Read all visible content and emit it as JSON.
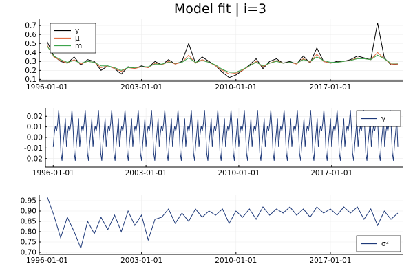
{
  "figure": {
    "title": "Model fit | i=3"
  },
  "colors": {
    "y": "#000000",
    "mu": "#e26f46",
    "m": "#3da44d",
    "gamma": "#1f3a7a",
    "sigma2": "#1f3a7a",
    "grid": "#ececec",
    "axis": "#000000"
  },
  "chart_data": [
    {
      "type": "line",
      "title": "Model fit | i=3",
      "x_axis": {
        "type": "date",
        "range": [
          "1995-06-01",
          "2022-06-01"
        ],
        "ticks": [
          "1996-01-01",
          "2003-01-01",
          "2010-01-01",
          "2017-01-01"
        ]
      },
      "y_axis": {
        "range": [
          0.08,
          0.77
        ],
        "ticks": [
          "0.1",
          "0.2",
          "0.3",
          "0.4",
          "0.5",
          "0.6",
          "0.7"
        ]
      },
      "grid": true,
      "legend": {
        "position": "top-left",
        "entries": [
          "y",
          "μ",
          "m"
        ]
      },
      "series": [
        {
          "name": "y",
          "points": [
            [
              "1996-01-01",
              0.52
            ],
            [
              "1996-07-01",
              0.36
            ],
            [
              "1997-01-01",
              0.3
            ],
            [
              "1997-07-01",
              0.28
            ],
            [
              "1998-01-01",
              0.35
            ],
            [
              "1998-07-01",
              0.26
            ],
            [
              "1999-01-01",
              0.32
            ],
            [
              "1999-07-01",
              0.3
            ],
            [
              "2000-01-01",
              0.2
            ],
            [
              "2000-07-01",
              0.25
            ],
            [
              "2001-01-01",
              0.22
            ],
            [
              "2001-07-01",
              0.16
            ],
            [
              "2002-01-01",
              0.24
            ],
            [
              "2002-07-01",
              0.22
            ],
            [
              "2003-01-01",
              0.25
            ],
            [
              "2003-07-01",
              0.23
            ],
            [
              "2004-01-01",
              0.3
            ],
            [
              "2004-07-01",
              0.26
            ],
            [
              "2005-01-01",
              0.32
            ],
            [
              "2005-07-01",
              0.27
            ],
            [
              "2006-01-01",
              0.3
            ],
            [
              "2006-07-01",
              0.5
            ],
            [
              "2007-01-01",
              0.28
            ],
            [
              "2007-07-01",
              0.35
            ],
            [
              "2008-01-01",
              0.3
            ],
            [
              "2008-07-01",
              0.25
            ],
            [
              "2009-01-01",
              0.18
            ],
            [
              "2009-07-01",
              0.12
            ],
            [
              "2010-01-01",
              0.15
            ],
            [
              "2010-07-01",
              0.2
            ],
            [
              "2011-01-01",
              0.26
            ],
            [
              "2011-07-01",
              0.33
            ],
            [
              "2012-01-01",
              0.22
            ],
            [
              "2012-07-01",
              0.3
            ],
            [
              "2013-01-01",
              0.33
            ],
            [
              "2013-07-01",
              0.28
            ],
            [
              "2014-01-01",
              0.3
            ],
            [
              "2014-07-01",
              0.27
            ],
            [
              "2015-01-01",
              0.36
            ],
            [
              "2015-07-01",
              0.28
            ],
            [
              "2016-01-01",
              0.45
            ],
            [
              "2016-07-01",
              0.3
            ],
            [
              "2017-01-01",
              0.28
            ],
            [
              "2017-07-01",
              0.3
            ],
            [
              "2018-01-01",
              0.3
            ],
            [
              "2018-07-01",
              0.32
            ],
            [
              "2019-01-01",
              0.36
            ],
            [
              "2019-07-01",
              0.34
            ],
            [
              "2020-01-01",
              0.32
            ],
            [
              "2020-07-01",
              0.73
            ],
            [
              "2021-01-01",
              0.34
            ],
            [
              "2021-07-01",
              0.26
            ],
            [
              "2022-01-01",
              0.27
            ]
          ]
        },
        {
          "name": "μ",
          "points": [
            [
              "1996-01-01",
              0.48
            ],
            [
              "1996-07-01",
              0.35
            ],
            [
              "1997-01-01",
              0.31
            ],
            [
              "1997-07-01",
              0.28
            ],
            [
              "1998-01-01",
              0.32
            ],
            [
              "1998-07-01",
              0.27
            ],
            [
              "1999-01-01",
              0.3
            ],
            [
              "1999-07-01",
              0.29
            ],
            [
              "2000-01-01",
              0.23
            ],
            [
              "2000-07-01",
              0.25
            ],
            [
              "2001-01-01",
              0.22
            ],
            [
              "2001-07-01",
              0.19
            ],
            [
              "2002-01-01",
              0.23
            ],
            [
              "2002-07-01",
              0.22
            ],
            [
              "2003-01-01",
              0.24
            ],
            [
              "2003-07-01",
              0.23
            ],
            [
              "2004-01-01",
              0.28
            ],
            [
              "2004-07-01",
              0.26
            ],
            [
              "2005-01-01",
              0.3
            ],
            [
              "2005-07-01",
              0.27
            ],
            [
              "2006-01-01",
              0.29
            ],
            [
              "2006-07-01",
              0.37
            ],
            [
              "2007-01-01",
              0.28
            ],
            [
              "2007-07-01",
              0.32
            ],
            [
              "2008-01-01",
              0.29
            ],
            [
              "2008-07-01",
              0.25
            ],
            [
              "2009-01-01",
              0.2
            ],
            [
              "2009-07-01",
              0.16
            ],
            [
              "2010-01-01",
              0.17
            ],
            [
              "2010-07-01",
              0.2
            ],
            [
              "2011-01-01",
              0.25
            ],
            [
              "2011-07-01",
              0.3
            ],
            [
              "2012-01-01",
              0.24
            ],
            [
              "2012-07-01",
              0.28
            ],
            [
              "2013-01-01",
              0.31
            ],
            [
              "2013-07-01",
              0.28
            ],
            [
              "2014-01-01",
              0.29
            ],
            [
              "2014-07-01",
              0.27
            ],
            [
              "2015-01-01",
              0.33
            ],
            [
              "2015-07-01",
              0.29
            ],
            [
              "2016-01-01",
              0.38
            ],
            [
              "2016-07-01",
              0.3
            ],
            [
              "2017-01-01",
              0.28
            ],
            [
              "2017-07-01",
              0.29
            ],
            [
              "2018-01-01",
              0.3
            ],
            [
              "2018-07-01",
              0.31
            ],
            [
              "2019-01-01",
              0.34
            ],
            [
              "2019-07-01",
              0.33
            ],
            [
              "2020-01-01",
              0.32
            ],
            [
              "2020-07-01",
              0.4
            ],
            [
              "2021-01-01",
              0.33
            ],
            [
              "2021-07-01",
              0.27
            ],
            [
              "2022-01-01",
              0.27
            ]
          ]
        },
        {
          "name": "m",
          "points": [
            [
              "1996-01-01",
              0.47
            ],
            [
              "1996-07-01",
              0.36
            ],
            [
              "1997-01-01",
              0.32
            ],
            [
              "1997-07-01",
              0.29
            ],
            [
              "1998-01-01",
              0.31
            ],
            [
              "1998-07-01",
              0.28
            ],
            [
              "1999-01-01",
              0.3
            ],
            [
              "1999-07-01",
              0.29
            ],
            [
              "2000-01-01",
              0.25
            ],
            [
              "2000-07-01",
              0.25
            ],
            [
              "2001-01-01",
              0.23
            ],
            [
              "2001-07-01",
              0.2
            ],
            [
              "2002-01-01",
              0.23
            ],
            [
              "2002-07-01",
              0.23
            ],
            [
              "2003-01-01",
              0.24
            ],
            [
              "2003-07-01",
              0.24
            ],
            [
              "2004-01-01",
              0.27
            ],
            [
              "2004-07-01",
              0.27
            ],
            [
              "2005-01-01",
              0.29
            ],
            [
              "2005-07-01",
              0.28
            ],
            [
              "2006-01-01",
              0.29
            ],
            [
              "2006-07-01",
              0.34
            ],
            [
              "2007-01-01",
              0.29
            ],
            [
              "2007-07-01",
              0.31
            ],
            [
              "2008-01-01",
              0.29
            ],
            [
              "2008-07-01",
              0.26
            ],
            [
              "2009-01-01",
              0.21
            ],
            [
              "2009-07-01",
              0.18
            ],
            [
              "2010-01-01",
              0.18
            ],
            [
              "2010-07-01",
              0.21
            ],
            [
              "2011-01-01",
              0.25
            ],
            [
              "2011-07-01",
              0.29
            ],
            [
              "2012-01-01",
              0.25
            ],
            [
              "2012-07-01",
              0.28
            ],
            [
              "2013-01-01",
              0.3
            ],
            [
              "2013-07-01",
              0.28
            ],
            [
              "2014-01-01",
              0.29
            ],
            [
              "2014-07-01",
              0.28
            ],
            [
              "2015-01-01",
              0.32
            ],
            [
              "2015-07-01",
              0.3
            ],
            [
              "2016-01-01",
              0.35
            ],
            [
              "2016-07-01",
              0.31
            ],
            [
              "2017-01-01",
              0.29
            ],
            [
              "2017-07-01",
              0.29
            ],
            [
              "2018-01-01",
              0.3
            ],
            [
              "2018-07-01",
              0.31
            ],
            [
              "2019-01-01",
              0.33
            ],
            [
              "2019-07-01",
              0.33
            ],
            [
              "2020-01-01",
              0.32
            ],
            [
              "2020-07-01",
              0.37
            ],
            [
              "2021-01-01",
              0.33
            ],
            [
              "2021-07-01",
              0.28
            ],
            [
              "2022-01-01",
              0.28
            ]
          ]
        }
      ]
    },
    {
      "type": "line",
      "x_axis": {
        "type": "date",
        "range": [
          "1995-06-01",
          "2022-06-01"
        ],
        "ticks": [
          "1996-01-01",
          "2003-01-01",
          "2010-01-01",
          "2017-01-01"
        ]
      },
      "y_axis": {
        "range": [
          -0.028,
          0.028
        ],
        "ticks": [
          "-0.02",
          "-0.01",
          "0.00",
          "0.01",
          "0.02"
        ]
      },
      "grid": true,
      "legend": {
        "position": "top-right",
        "entries": [
          "γ"
        ]
      },
      "series": [
        {
          "name": "γ",
          "seasonal_pattern": {
            "start": "1996-01-01",
            "end": "2022-01-01",
            "monthly_values": [
              -0.009,
              0.004,
              0.011,
              0.006,
              0.013,
              0.026,
              0.01,
              -0.015,
              -0.022,
              -0.006,
              0.005,
              0.018
            ]
          }
        }
      ]
    },
    {
      "type": "line",
      "x_axis": {
        "type": "date",
        "range": [
          "1995-06-01",
          "2022-06-01"
        ],
        "ticks": [
          "1996-01-01",
          "2003-01-01",
          "2010-01-01",
          "2017-01-01"
        ]
      },
      "y_axis": {
        "range": [
          0.69,
          0.98
        ],
        "ticks": [
          "0.70",
          "0.75",
          "0.80",
          "0.85",
          "0.90",
          "0.95"
        ]
      },
      "grid": true,
      "legend": {
        "position": "bottom-right",
        "entries": [
          "σ²"
        ]
      },
      "series": [
        {
          "name": "σ²",
          "points": [
            [
              "1996-01-01",
              0.97
            ],
            [
              "1996-07-01",
              0.88
            ],
            [
              "1997-01-01",
              0.77
            ],
            [
              "1997-07-01",
              0.87
            ],
            [
              "1998-01-01",
              0.8
            ],
            [
              "1998-07-01",
              0.72
            ],
            [
              "1999-01-01",
              0.85
            ],
            [
              "1999-07-01",
              0.79
            ],
            [
              "2000-01-01",
              0.87
            ],
            [
              "2000-07-01",
              0.81
            ],
            [
              "2001-01-01",
              0.88
            ],
            [
              "2001-07-01",
              0.8
            ],
            [
              "2002-01-01",
              0.9
            ],
            [
              "2002-07-01",
              0.83
            ],
            [
              "2003-01-01",
              0.88
            ],
            [
              "2003-07-01",
              0.76
            ],
            [
              "2004-01-01",
              0.86
            ],
            [
              "2004-07-01",
              0.87
            ],
            [
              "2005-01-01",
              0.91
            ],
            [
              "2005-07-01",
              0.84
            ],
            [
              "2006-01-01",
              0.89
            ],
            [
              "2006-07-01",
              0.85
            ],
            [
              "2007-01-01",
              0.91
            ],
            [
              "2007-07-01",
              0.87
            ],
            [
              "2008-01-01",
              0.9
            ],
            [
              "2008-07-01",
              0.88
            ],
            [
              "2009-01-01",
              0.91
            ],
            [
              "2009-07-01",
              0.84
            ],
            [
              "2010-01-01",
              0.9
            ],
            [
              "2010-07-01",
              0.87
            ],
            [
              "2011-01-01",
              0.91
            ],
            [
              "2011-07-01",
              0.86
            ],
            [
              "2012-01-01",
              0.92
            ],
            [
              "2012-07-01",
              0.88
            ],
            [
              "2013-01-01",
              0.91
            ],
            [
              "2013-07-01",
              0.89
            ],
            [
              "2014-01-01",
              0.92
            ],
            [
              "2014-07-01",
              0.88
            ],
            [
              "2015-01-01",
              0.91
            ],
            [
              "2015-07-01",
              0.87
            ],
            [
              "2016-01-01",
              0.92
            ],
            [
              "2016-07-01",
              0.89
            ],
            [
              "2017-01-01",
              0.91
            ],
            [
              "2017-07-01",
              0.88
            ],
            [
              "2018-01-01",
              0.92
            ],
            [
              "2018-07-01",
              0.89
            ],
            [
              "2019-01-01",
              0.92
            ],
            [
              "2019-07-01",
              0.86
            ],
            [
              "2020-01-01",
              0.91
            ],
            [
              "2020-07-01",
              0.83
            ],
            [
              "2021-01-01",
              0.9
            ],
            [
              "2021-07-01",
              0.86
            ],
            [
              "2022-01-01",
              0.89
            ]
          ]
        }
      ]
    }
  ]
}
